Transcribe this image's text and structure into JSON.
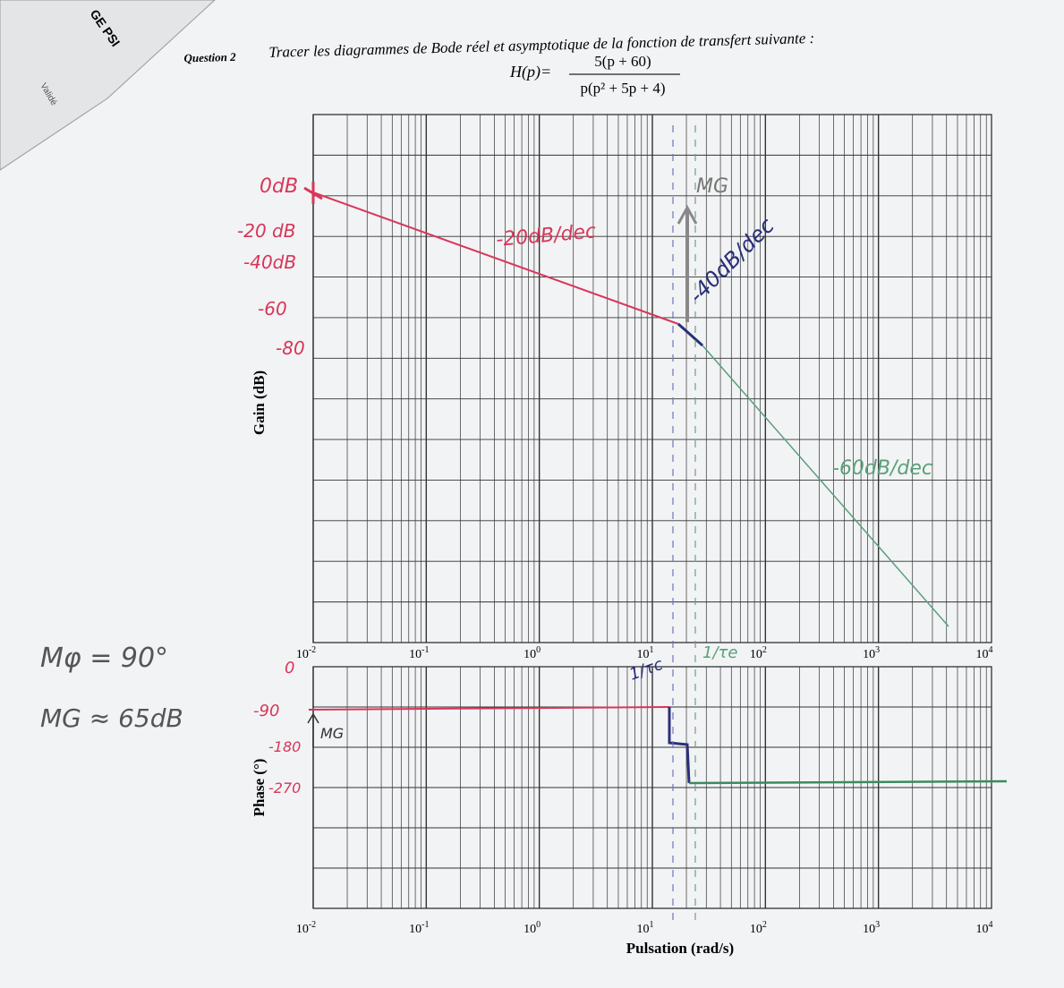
{
  "question": {
    "label": "Question 2",
    "text": "Tracer les diagrammes de Bode réel et asymptotique de la fonction de transfert suivante :"
  },
  "formula": {
    "lhs": "H(p)=",
    "numerator": "5(p + 60)",
    "denominator": "p(p² + 5p + 4)"
  },
  "side_sheet": {
    "header": "GE PSI",
    "text": "Validé"
  },
  "gain_plot": {
    "y_label": "Gain (dB)",
    "x_ticks": [
      {
        "base": "10",
        "exp": "-2"
      },
      {
        "base": "10",
        "exp": "-1"
      },
      {
        "base": "10",
        "exp": "0"
      },
      {
        "base": "10",
        "exp": "1"
      },
      {
        "base": "10",
        "exp": "2"
      },
      {
        "base": "10",
        "exp": "3"
      },
      {
        "base": "10",
        "exp": "4"
      }
    ]
  },
  "phase_plot": {
    "y_label": "Phase (°)",
    "x_label": "Pulsation (rad/s)",
    "x_ticks": [
      {
        "base": "10",
        "exp": "-2"
      },
      {
        "base": "10",
        "exp": "-1"
      },
      {
        "base": "10",
        "exp": "0"
      },
      {
        "base": "10",
        "exp": "1"
      },
      {
        "base": "10",
        "exp": "2"
      },
      {
        "base": "10",
        "exp": "3"
      },
      {
        "base": "10",
        "exp": "4"
      }
    ]
  },
  "handwriting": {
    "gain_levels": [
      "0dB",
      "-20 dB",
      "-40dB",
      "-60",
      "-80"
    ],
    "slopes": [
      "-20dB/dec",
      "-40dB/dec",
      "-60dB/dec"
    ],
    "gain_margin_mark": "MG",
    "corner_1": "1/τc",
    "corner_2": "1/τe",
    "phase_levels": [
      "0",
      "-90",
      "-180",
      "-270"
    ],
    "phase_mark": "MG",
    "phase_margin": "Mφ = 90°",
    "gain_margin": "MG ≈ 65dB"
  }
}
